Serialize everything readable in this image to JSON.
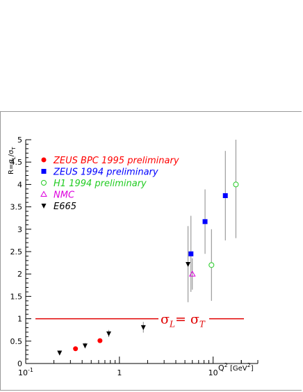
{
  "chart_data": {
    "type": "scatter",
    "xscale": "log",
    "xlim": [
      0.1,
      30
    ],
    "ylim": [
      0,
      5
    ],
    "xlabel": "Q² [GeV²]",
    "ylabel": "R=σL/σT",
    "xticks": [
      {
        "value": 0.1,
        "base": "10",
        "sup": "-1"
      },
      {
        "value": 1,
        "base": "1",
        "sup": ""
      },
      {
        "value": 10,
        "base": "10",
        "sup": ""
      }
    ],
    "yticks": [
      "0",
      "0.5",
      "1",
      "1.5",
      "2",
      "2.5",
      "3",
      "3.5",
      "4",
      "4.5",
      "5"
    ],
    "reference_line": {
      "y": 1,
      "label_left": "σL= σT",
      "color": "#e00000"
    },
    "series": [
      {
        "name": "ZEUS BPC 1995 preliminary",
        "marker": "circle",
        "color": "#ff0000",
        "points": [
          [
            0.34,
            0.33,
            0
          ],
          [
            0.62,
            0.51,
            0
          ]
        ]
      },
      {
        "name": "ZEUS 1994 preliminary",
        "marker": "square",
        "color": "#0000ff",
        "points": [
          [
            5.8,
            2.45,
            0.85
          ],
          [
            8.2,
            3.17,
            0.72
          ],
          [
            13.5,
            3.75,
            1.0
          ]
        ]
      },
      {
        "name": "H1 1994 preliminary",
        "marker": "open-circle",
        "color": "#22cc22",
        "points": [
          [
            9.6,
            2.2,
            0.8
          ],
          [
            17.5,
            4.0,
            1.2
          ]
        ]
      },
      {
        "name": "NMC",
        "marker": "open-triangle",
        "color": "#dd00dd",
        "points": [
          [
            6.0,
            2.0,
            0.35
          ]
        ]
      },
      {
        "name": "E665",
        "marker": "down-triangle",
        "color": "#000000",
        "points": [
          [
            0.23,
            0.24,
            0.05
          ],
          [
            0.43,
            0.4,
            0.06
          ],
          [
            0.77,
            0.67,
            0.08
          ],
          [
            1.8,
            0.81,
            0.12
          ],
          [
            5.4,
            2.22,
            0.85
          ]
        ]
      }
    ]
  }
}
